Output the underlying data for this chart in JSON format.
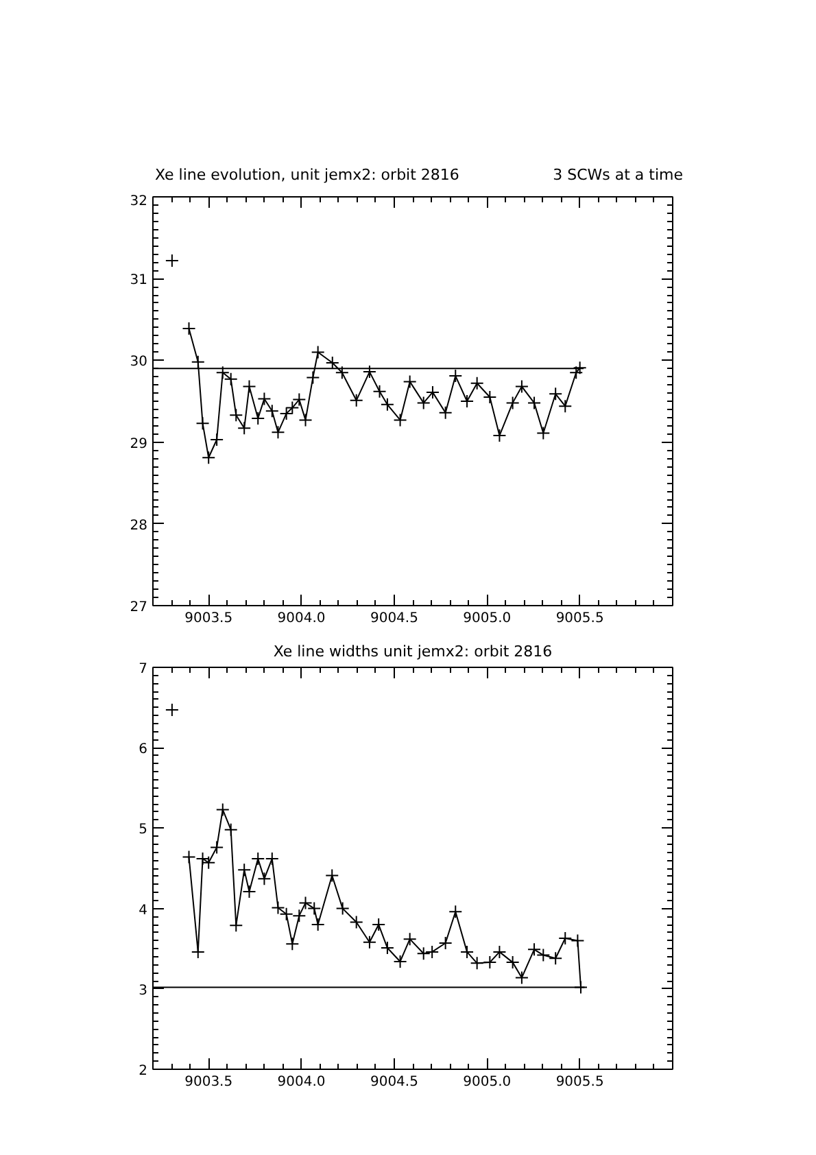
{
  "chart_data": [
    {
      "type": "line",
      "title": "Xe line evolution, unit jemx2: orbit 2816",
      "subtitle": "3 SCWs at a time",
      "marker": "cross",
      "grid": false,
      "xlim": [
        9003.2,
        9006.0
      ],
      "ylim": [
        27,
        32
      ],
      "xticks": [
        {
          "value": 9003.5,
          "label": "9003.5"
        },
        {
          "value": 9004.0,
          "label": "9004.0"
        },
        {
          "value": 9004.5,
          "label": "9004.5"
        },
        {
          "value": 9005.0,
          "label": "9005.0"
        },
        {
          "value": 9005.5,
          "label": "9005.5"
        }
      ],
      "yticks": [
        27,
        28,
        29,
        30,
        31,
        32
      ],
      "ref_lines": [
        {
          "axis": "y",
          "value": 29.9,
          "label": null,
          "color": "#000000"
        }
      ],
      "series": [
        {
          "color": "#000000",
          "x": [
            9003.303,
            9003.31,
            9003.35,
            9003.394,
            9003.443,
            9003.468,
            9003.5,
            9003.544,
            9003.576,
            9003.62,
            9003.648,
            9003.692,
            9003.719,
            9003.766,
            9003.8,
            9003.842,
            9003.874,
            9003.919,
            9003.951,
            9003.988,
            9004.022,
            9004.062,
            9004.089,
            9004.167,
            9004.219,
            9004.296,
            9004.367,
            9004.421,
            9004.463,
            9004.532,
            9004.584,
            9004.658,
            9004.707,
            9004.776,
            9004.83,
            9004.892,
            9004.946,
            9005.015,
            9005.067,
            9005.138,
            9005.187,
            9005.254,
            9005.303,
            9005.369,
            9005.421,
            9005.48,
            9005.5
          ],
          "values": [
            31.22,
            null,
            null,
            30.39,
            29.98,
            29.23,
            28.81,
            29.03,
            29.85,
            29.77,
            29.33,
            29.17,
            29.68,
            29.29,
            29.53,
            29.38,
            29.12,
            29.35,
            29.42,
            29.52,
            29.27,
            29.79,
            30.1,
            29.97,
            29.85,
            29.51,
            29.86,
            29.62,
            29.46,
            29.27,
            29.74,
            29.48,
            29.61,
            29.36,
            29.81,
            29.5,
            29.72,
            29.55,
            29.08,
            29.48,
            29.68,
            29.48,
            29.11,
            29.59,
            29.44,
            29.85,
            29.91
          ]
        }
      ]
    },
    {
      "type": "line",
      "title": "Xe line widths unit jemx2: orbit 2816",
      "marker": "cross",
      "grid": false,
      "xlim": [
        9003.2,
        9006.0
      ],
      "ylim": [
        2,
        7
      ],
      "xticks": [
        {
          "value": 9003.5,
          "label": "9003.5"
        },
        {
          "value": 9004.0,
          "label": "9004.0"
        },
        {
          "value": 9004.5,
          "label": "9004.5"
        },
        {
          "value": 9005.0,
          "label": "9005.0"
        },
        {
          "value": 9005.5,
          "label": "9005.5"
        }
      ],
      "yticks": [
        2,
        3,
        4,
        5,
        6,
        7
      ],
      "ref_lines": [
        {
          "axis": "y",
          "value": 3.02,
          "label": null,
          "color": "#000000"
        }
      ],
      "series": [
        {
          "color": "#000000",
          "x": [
            9003.303,
            9003.31,
            9003.35,
            9003.394,
            9003.443,
            9003.468,
            9003.5,
            9003.544,
            9003.576,
            9003.62,
            9003.648,
            9003.692,
            9003.719,
            9003.766,
            9003.8,
            9003.842,
            9003.874,
            9003.919,
            9003.951,
            9003.988,
            9004.022,
            9004.069,
            9004.089,
            9004.165,
            9004.222,
            9004.296,
            9004.367,
            9004.416,
            9004.463,
            9004.532,
            9004.584,
            9004.658,
            9004.704,
            9004.776,
            9004.83,
            9004.892,
            9004.946,
            9005.015,
            9005.067,
            9005.138,
            9005.187,
            9005.254,
            9005.303,
            9005.369,
            9005.421,
            9005.488,
            9005.505
          ],
          "values": [
            6.47,
            null,
            null,
            4.64,
            3.46,
            4.62,
            4.57,
            4.76,
            5.23,
            4.98,
            3.79,
            4.48,
            4.21,
            4.62,
            4.37,
            4.62,
            4.01,
            3.93,
            3.56,
            3.91,
            4.07,
            4.0,
            3.8,
            4.41,
            4.0,
            3.83,
            3.58,
            3.8,
            3.51,
            3.34,
            3.62,
            3.44,
            3.46,
            3.57,
            3.96,
            3.46,
            3.32,
            3.33,
            3.46,
            3.33,
            3.14,
            3.49,
            3.42,
            3.38,
            3.63,
            3.6,
            3.02
          ]
        }
      ]
    }
  ]
}
